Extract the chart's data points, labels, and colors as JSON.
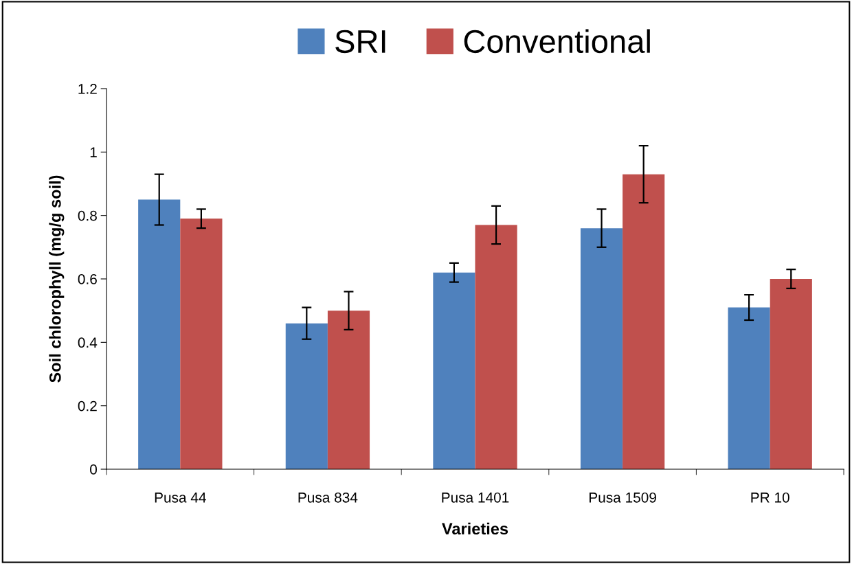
{
  "chart_data": {
    "type": "bar",
    "xlabel": "Varieties",
    "ylabel": "Soil chlorophyll (mg/g soil)",
    "categories": [
      "Pusa 44",
      "Pusa 834",
      "Pusa 1401",
      "Pusa 1509",
      "PR 10"
    ],
    "series": [
      {
        "name": "SRI",
        "color": "#4f81bd",
        "values": [
          0.85,
          0.46,
          0.62,
          0.76,
          0.51
        ],
        "errors": [
          0.08,
          0.05,
          0.03,
          0.06,
          0.04
        ]
      },
      {
        "name": "Conventional",
        "color": "#c0504d",
        "values": [
          0.79,
          0.5,
          0.77,
          0.93,
          0.6
        ],
        "errors": [
          0.03,
          0.06,
          0.06,
          0.09,
          0.03
        ]
      }
    ],
    "ylim": [
      0,
      1.2
    ],
    "yticks": [
      0,
      0.2,
      0.4,
      0.6,
      0.8,
      1,
      1.2
    ],
    "legend": "top",
    "grid": false
  }
}
